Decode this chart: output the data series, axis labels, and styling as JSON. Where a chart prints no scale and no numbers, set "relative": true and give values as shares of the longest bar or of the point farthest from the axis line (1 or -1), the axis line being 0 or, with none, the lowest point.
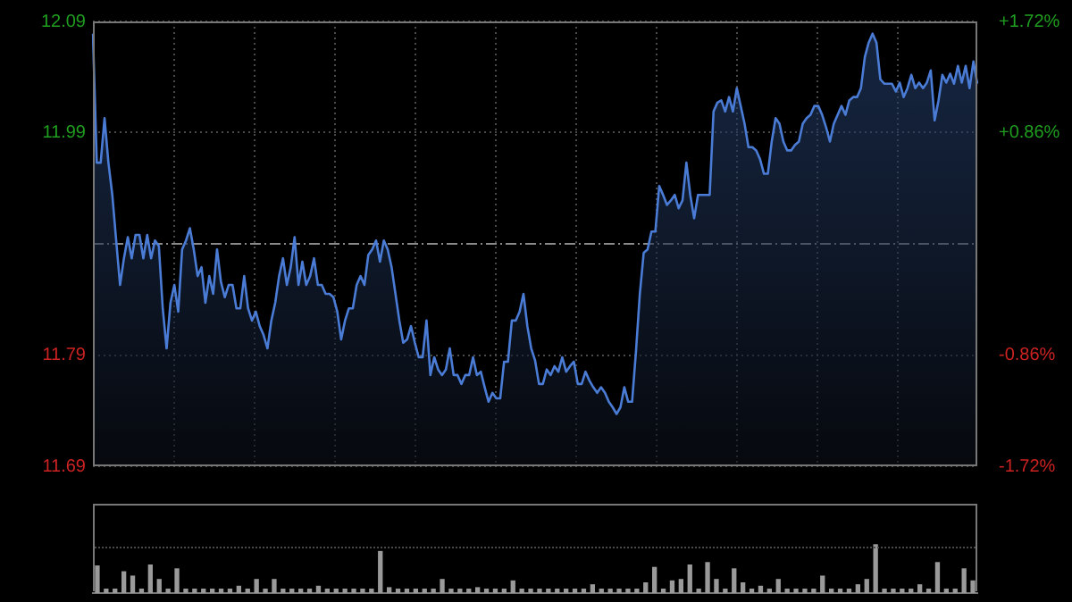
{
  "chart_data": [
    {
      "type": "area",
      "categories": [
        null,
        null,
        null,
        null,
        null,
        null,
        null,
        null,
        null,
        null,
        null,
        null,
        null,
        null,
        null,
        null,
        null,
        null,
        null,
        null,
        null,
        null,
        null,
        null,
        null,
        null,
        null,
        null,
        null,
        null,
        null,
        null,
        null,
        null,
        null,
        null,
        null,
        null,
        null,
        null,
        null,
        null,
        null,
        null,
        null,
        null,
        null,
        null,
        null,
        null,
        null,
        null,
        null,
        null,
        null,
        null,
        null,
        null,
        null,
        null,
        null,
        null,
        null,
        null,
        null,
        null,
        null,
        null,
        null,
        null,
        null,
        null,
        null,
        null,
        null,
        null,
        null,
        null,
        null,
        null,
        null,
        null,
        null,
        null,
        null,
        null,
        null,
        null,
        null,
        null,
        null,
        null,
        null,
        null,
        null,
        null,
        null,
        null,
        null,
        null,
        null,
        null,
        null,
        null,
        null,
        null,
        null,
        null,
        null,
        null,
        null,
        null,
        null,
        null,
        null,
        null,
        null,
        null,
        null,
        null,
        null,
        null,
        null,
        null,
        null,
        null,
        null,
        null,
        null,
        null,
        null,
        null,
        null,
        null,
        null,
        null,
        null,
        null,
        null,
        null,
        null,
        null,
        null,
        null,
        null,
        null,
        null,
        null,
        null,
        null,
        null,
        null,
        null,
        null,
        null,
        null,
        null,
        null,
        null,
        null,
        null,
        null,
        null,
        null,
        null,
        null,
        null,
        null,
        null,
        null,
        null,
        null,
        null,
        null,
        null,
        null,
        null,
        null,
        null,
        null,
        null,
        null,
        null,
        null,
        null,
        null,
        null,
        null,
        null,
        null,
        null,
        null,
        null,
        null,
        null,
        null,
        null,
        null,
        null,
        null,
        null,
        null,
        null,
        null,
        null,
        null,
        null,
        null,
        null,
        null,
        null,
        null,
        null,
        null,
        null,
        null,
        null,
        null,
        null,
        null,
        null,
        null,
        null,
        null,
        null,
        null,
        null,
        null,
        null
      ],
      "ylim": [
        11.69,
        12.09
      ],
      "yticks": [
        11.69,
        11.79,
        11.99,
        12.09
      ],
      "y2lim": [
        -1.72,
        1.72
      ],
      "y2ticks": [
        {
          "value": -1.72,
          "label": "-1.72%"
        },
        {
          "value": -0.86,
          "label": "-0.86%"
        },
        {
          "value": 0.86,
          "label": "+0.86%"
        },
        {
          "value": 1.72,
          "label": "+1.72%"
        }
      ],
      "tick_labels": "y",
      "grid": true,
      "ref_lines": [
        {
          "axis": "y",
          "value": 11.89,
          "color": "#8a8a8a",
          "line_style": "dashed"
        }
      ],
      "series": [
        {
          "color": "#4a7cd6",
          "values": [
            12.079,
            11.963,
            11.963,
            12.003,
            11.963,
            11.934,
            11.893,
            11.853,
            11.877,
            11.896,
            11.877,
            11.898,
            11.898,
            11.877,
            11.898,
            11.877,
            11.893,
            11.888,
            11.832,
            11.796,
            11.837,
            11.853,
            11.829,
            11.885,
            11.893,
            11.904,
            11.885,
            11.861,
            11.869,
            11.837,
            11.861,
            11.845,
            11.885,
            11.856,
            11.842,
            11.853,
            11.853,
            11.832,
            11.832,
            11.861,
            11.832,
            11.821,
            11.829,
            11.816,
            11.808,
            11.796,
            11.821,
            11.837,
            11.861,
            11.877,
            11.853,
            11.869,
            11.896,
            11.853,
            11.874,
            11.853,
            11.861,
            11.877,
            11.853,
            11.853,
            11.845,
            11.845,
            11.842,
            11.829,
            11.804,
            11.821,
            11.832,
            11.832,
            11.853,
            11.861,
            11.853,
            11.88,
            11.885,
            11.893,
            11.874,
            11.893,
            11.885,
            11.869,
            11.845,
            11.821,
            11.801,
            11.804,
            11.816,
            11.801,
            11.788,
            11.788,
            11.821,
            11.772,
            11.788,
            11.777,
            11.772,
            11.777,
            11.796,
            11.772,
            11.772,
            11.764,
            11.772,
            11.772,
            11.788,
            11.772,
            11.775,
            11.761,
            11.748,
            11.756,
            11.751,
            11.751,
            11.784,
            11.784,
            11.821,
            11.821,
            11.829,
            11.845,
            11.816,
            11.796,
            11.785,
            11.764,
            11.764,
            11.777,
            11.772,
            11.78,
            11.775,
            11.788,
            11.775,
            11.78,
            11.784,
            11.764,
            11.764,
            11.775,
            11.767,
            11.761,
            11.756,
            11.761,
            11.756,
            11.748,
            11.743,
            11.737,
            11.743,
            11.761,
            11.748,
            11.748,
            11.793,
            11.845,
            11.882,
            11.885,
            11.901,
            11.901,
            11.942,
            11.934,
            11.925,
            11.929,
            11.934,
            11.922,
            11.929,
            11.963,
            11.934,
            11.913,
            11.934,
            11.934,
            11.934,
            11.934,
            12.009,
            12.017,
            12.019,
            12.009,
            12.022,
            12.009,
            12.03,
            12.014,
            11.998,
            11.977,
            11.977,
            11.974,
            11.966,
            11.953,
            11.953,
            11.982,
            12.003,
            11.998,
            11.982,
            11.974,
            11.974,
            11.979,
            11.982,
            11.998,
            12.003,
            12.006,
            12.014,
            12.014,
            12.006,
            11.995,
            11.982,
            11.998,
            12.006,
            12.014,
            12.006,
            12.019,
            12.022,
            12.022,
            12.03,
            12.058,
            12.071,
            12.079,
            12.071,
            12.038,
            12.034,
            12.034,
            12.034,
            12.027,
            12.035,
            12.022,
            12.03,
            12.042,
            12.03,
            12.035,
            12.03,
            12.035,
            12.046,
            12.001,
            12.019,
            12.042,
            12.035,
            12.043,
            12.034,
            12.05,
            12.035,
            12.05,
            12.03,
            12.054,
            12.034
          ]
        }
      ]
    },
    {
      "type": "bar",
      "relative": true,
      "tick_labels": false,
      "grid": true,
      "categories": [
        null,
        null,
        null,
        null,
        null,
        null,
        null,
        null,
        null,
        null,
        null,
        null,
        null,
        null,
        null,
        null,
        null,
        null,
        null,
        null,
        null,
        null,
        null,
        null,
        null,
        null,
        null,
        null,
        null,
        null,
        null,
        null,
        null,
        null,
        null,
        null,
        null,
        null,
        null,
        null,
        null,
        null,
        null,
        null,
        null,
        null,
        null,
        null,
        null,
        null,
        null,
        null,
        null,
        null,
        null,
        null,
        null,
        null,
        null,
        null,
        null,
        null,
        null,
        null,
        null,
        null,
        null,
        null,
        null,
        null,
        null,
        null,
        null,
        null,
        null,
        null,
        null,
        null,
        null,
        null,
        null,
        null,
        null,
        null,
        null,
        null,
        null,
        null,
        null,
        null,
        null,
        null,
        null,
        null,
        null,
        null,
        null,
        null,
        null,
        null
      ],
      "series": [
        {
          "color": "#9a9a9a",
          "values": [
            0.56,
            0.08,
            0.08,
            0.44,
            0.35,
            0.08,
            0.58,
            0.28,
            0.08,
            0.5,
            0.08,
            0.08,
            0.08,
            0.08,
            0.08,
            0.08,
            0.14,
            0.08,
            0.28,
            0.08,
            0.28,
            0.08,
            0.08,
            0.08,
            0.08,
            0.14,
            0.08,
            0.08,
            0.08,
            0.08,
            0.08,
            0.08,
            0.86,
            0.11,
            0.08,
            0.08,
            0.08,
            0.08,
            0.08,
            0.28,
            0.08,
            0.08,
            0.08,
            0.11,
            0.08,
            0.08,
            0.08,
            0.25,
            0.08,
            0.08,
            0.08,
            0.08,
            0.08,
            0.08,
            0.08,
            0.08,
            0.17,
            0.08,
            0.08,
            0.08,
            0.08,
            0.08,
            0.21,
            0.53,
            0.08,
            0.25,
            0.28,
            0.58,
            0.08,
            0.63,
            0.28,
            0.08,
            0.5,
            0.21,
            0.08,
            0.14,
            0.08,
            0.28,
            0.08,
            0.08,
            0.08,
            0.08,
            0.35,
            0.08,
            0.08,
            0.08,
            0.17,
            0.28,
            1,
            0.08,
            0.08,
            0.08,
            0.08,
            0.17,
            0.08,
            0.63,
            0.08,
            0.08,
            0.5,
            0.25
          ]
        }
      ]
    }
  ]
}
